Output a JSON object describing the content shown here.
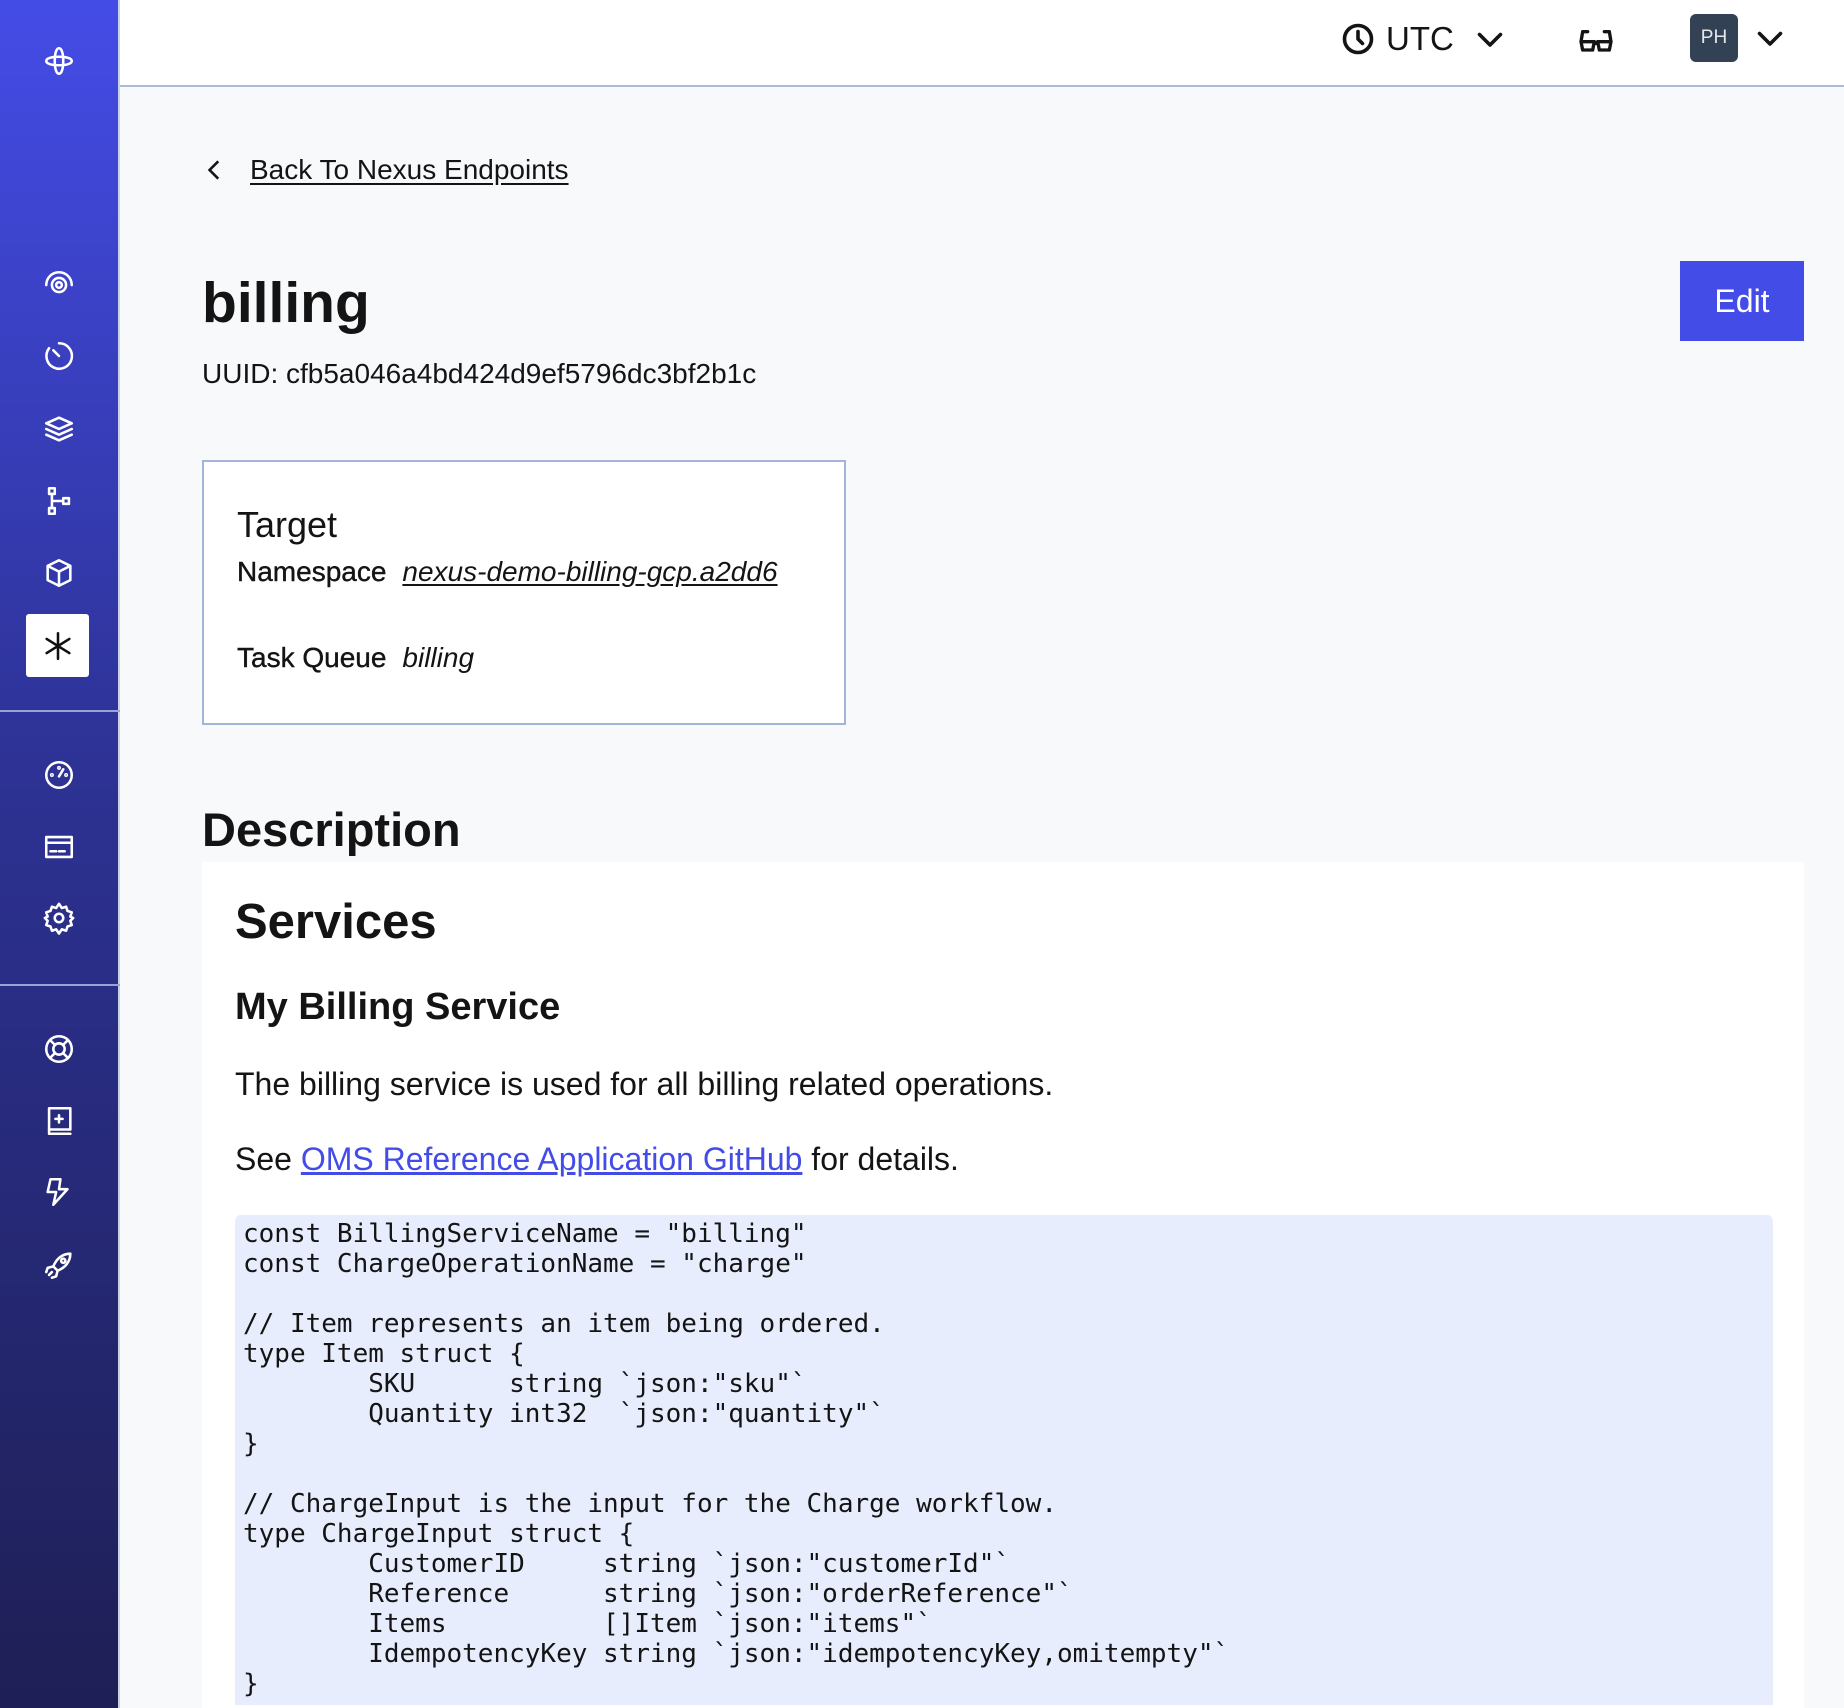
{
  "header": {
    "timezone": "UTC",
    "avatar_initials": "PH"
  },
  "back_link": "Back To Nexus Endpoints",
  "endpoint": {
    "name": "billing",
    "uuid": "UUID: cfb5a046a4bd424d9ef5796dc3bf2b1c",
    "edit_label": "Edit"
  },
  "target": {
    "heading": "Target",
    "namespace_label": "Namespace",
    "namespace_value": "nexus-demo-billing-gcp.a2dd6",
    "task_queue_label": "Task Queue",
    "task_queue_value": "billing"
  },
  "description": {
    "heading": "Description",
    "h1": "Services",
    "h2": "My Billing Service",
    "paragraph": "The billing service is used for all billing related operations.",
    "see_prefix": "See ",
    "link_text": "OMS Reference Application GitHub",
    "see_suffix": " for details.",
    "code": [
      "const BillingServiceName = \"billing\"",
      "const ChargeOperationName = \"charge\"",
      "",
      "// Item represents an item being ordered.",
      "type Item struct {",
      "        SKU      string `json:\"sku\"`",
      "        Quantity int32  `json:\"quantity\"`",
      "}",
      "",
      "// ChargeInput is the input for the Charge workflow.",
      "type ChargeInput struct {",
      "        CustomerID     string `json:\"customerId\"`",
      "        Reference      string `json:\"orderReference\"`",
      "        Items          []Item `json:\"items\"`",
      "        IdempotencyKey string `json:\"idempotencyKey,omitempty\"`",
      "}"
    ]
  },
  "colors": {
    "accent": "#444ce7",
    "sidebar_top": "#444ce7",
    "sidebar_bottom": "#1e1f55",
    "code_bg": "#e7edfd",
    "avatar_bg": "#334155"
  }
}
